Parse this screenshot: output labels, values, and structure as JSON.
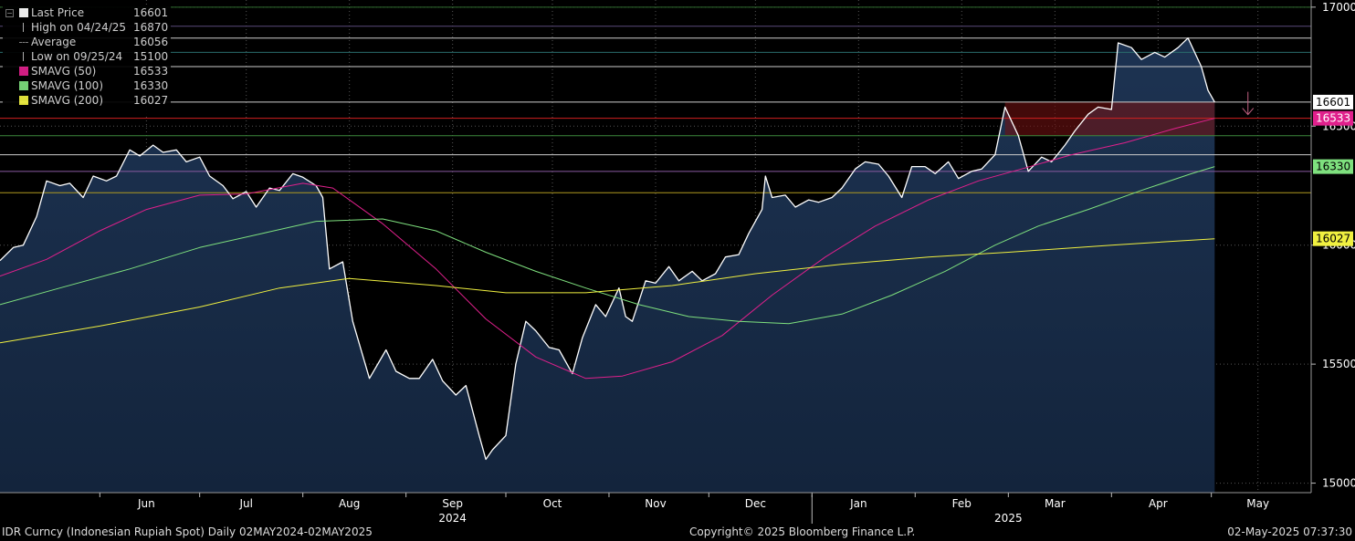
{
  "legend": {
    "items": [
      {
        "label": "Last Price",
        "value": "16601",
        "color": "#ffffff",
        "symbol": "box"
      },
      {
        "label": "High on 04/24/25",
        "value": "16870",
        "color": "#bbbbbb",
        "symbol": "high-marker"
      },
      {
        "label": "Average",
        "value": "16056",
        "color": "#888888",
        "symbol": "average-marker"
      },
      {
        "label": "Low on 09/25/24",
        "value": "15100",
        "color": "#bbbbbb",
        "symbol": "low-marker"
      },
      {
        "label": "SMAVG (50)",
        "value": "16533",
        "color": "#e0208c",
        "symbol": "box"
      },
      {
        "label": "SMAVG (100)",
        "value": "16330",
        "color": "#7ee07e",
        "symbol": "box"
      },
      {
        "label": "SMAVG (200)",
        "value": "16027",
        "color": "#f0f040",
        "symbol": "box"
      }
    ]
  },
  "footer": {
    "left": "IDR Curncy (Indonesian Rupiah Spot)  Daily 02MAY2024-02MAY2025",
    "center": "Copyright© 2025 Bloomberg Finance L.P.",
    "right": "02-May-2025 07:37:30"
  },
  "chart_data": {
    "type": "line",
    "title": "IDR Curncy (Indonesian Rupiah Spot)",
    "period": "Daily 02MAY2024-02MAY2025",
    "ylim": [
      14960,
      17030
    ],
    "y_ticks": [
      15000,
      15500,
      16000,
      16500,
      17000
    ],
    "x_ticks": [
      {
        "label": "Jun",
        "date": "2024-06-15"
      },
      {
        "label": "Jul",
        "date": "2024-07-15"
      },
      {
        "label": "Aug",
        "date": "2024-08-15"
      },
      {
        "label": "Sep",
        "date": "2024-09-15"
      },
      {
        "label": "Oct",
        "date": "2024-10-15"
      },
      {
        "label": "Nov",
        "date": "2024-11-15"
      },
      {
        "label": "Dec",
        "date": "2024-12-15"
      },
      {
        "label": "Jan",
        "date": "2025-01-15"
      },
      {
        "label": "Feb",
        "date": "2025-02-15"
      },
      {
        "label": "Mar",
        "date": "2025-03-15"
      },
      {
        "label": "Apr",
        "date": "2025-04-15"
      },
      {
        "label": "May",
        "date": "2025-05-15"
      }
    ],
    "year_labels": [
      {
        "label": "2024",
        "date": "2024-09-15"
      },
      {
        "label": "2025",
        "date": "2025-03-01"
      }
    ],
    "x_start": "2024-05-02",
    "x_end": "2025-05-31",
    "grid": true,
    "series": [
      {
        "name": "Last Price",
        "color": "#ffffff",
        "area": true,
        "last_value": 16601,
        "points": [
          [
            "2024-05-02",
            15935
          ],
          [
            "2024-05-06",
            15990
          ],
          [
            "2024-05-09",
            16000
          ],
          [
            "2024-05-13",
            16120
          ],
          [
            "2024-05-16",
            16270
          ],
          [
            "2024-05-20",
            16250
          ],
          [
            "2024-05-23",
            16260
          ],
          [
            "2024-05-27",
            16200
          ],
          [
            "2024-05-30",
            16290
          ],
          [
            "2024-06-03",
            16270
          ],
          [
            "2024-06-06",
            16290
          ],
          [
            "2024-06-10",
            16400
          ],
          [
            "2024-06-13",
            16375
          ],
          [
            "2024-06-17",
            16420
          ],
          [
            "2024-06-20",
            16390
          ],
          [
            "2024-06-24",
            16400
          ],
          [
            "2024-06-27",
            16350
          ],
          [
            "2024-07-01",
            16370
          ],
          [
            "2024-07-04",
            16290
          ],
          [
            "2024-07-08",
            16250
          ],
          [
            "2024-07-11",
            16195
          ],
          [
            "2024-07-15",
            16225
          ],
          [
            "2024-07-18",
            16160
          ],
          [
            "2024-07-22",
            16240
          ],
          [
            "2024-07-25",
            16230
          ],
          [
            "2024-07-29",
            16300
          ],
          [
            "2024-08-01",
            16285
          ],
          [
            "2024-08-05",
            16250
          ],
          [
            "2024-08-07",
            16200
          ],
          [
            "2024-08-09",
            15900
          ],
          [
            "2024-08-13",
            15930
          ],
          [
            "2024-08-16",
            15680
          ],
          [
            "2024-08-21",
            15440
          ],
          [
            "2024-08-26",
            15560
          ],
          [
            "2024-08-29",
            15470
          ],
          [
            "2024-09-02",
            15440
          ],
          [
            "2024-09-05",
            15440
          ],
          [
            "2024-09-09",
            15520
          ],
          [
            "2024-09-12",
            15430
          ],
          [
            "2024-09-16",
            15370
          ],
          [
            "2024-09-19",
            15410
          ],
          [
            "2024-09-23",
            15200
          ],
          [
            "2024-09-25",
            15100
          ],
          [
            "2024-09-27",
            15140
          ],
          [
            "2024-10-01",
            15200
          ],
          [
            "2024-10-04",
            15500
          ],
          [
            "2024-10-07",
            15680
          ],
          [
            "2024-10-10",
            15640
          ],
          [
            "2024-10-14",
            15570
          ],
          [
            "2024-10-17",
            15560
          ],
          [
            "2024-10-21",
            15460
          ],
          [
            "2024-10-24",
            15610
          ],
          [
            "2024-10-28",
            15750
          ],
          [
            "2024-10-31",
            15700
          ],
          [
            "2024-11-04",
            15820
          ],
          [
            "2024-11-06",
            15700
          ],
          [
            "2024-11-08",
            15680
          ],
          [
            "2024-11-12",
            15850
          ],
          [
            "2024-11-15",
            15840
          ],
          [
            "2024-11-19",
            15910
          ],
          [
            "2024-11-22",
            15850
          ],
          [
            "2024-11-26",
            15890
          ],
          [
            "2024-11-29",
            15850
          ],
          [
            "2024-12-03",
            15880
          ],
          [
            "2024-12-06",
            15950
          ],
          [
            "2024-12-10",
            15960
          ],
          [
            "2024-12-13",
            16050
          ],
          [
            "2024-12-17",
            16150
          ],
          [
            "2024-12-18",
            16290
          ],
          [
            "2024-12-20",
            16200
          ],
          [
            "2024-12-24",
            16210
          ],
          [
            "2024-12-27",
            16160
          ],
          [
            "2024-12-31",
            16190
          ],
          [
            "2025-01-03",
            16180
          ],
          [
            "2025-01-07",
            16200
          ],
          [
            "2025-01-10",
            16240
          ],
          [
            "2025-01-14",
            16320
          ],
          [
            "2025-01-17",
            16350
          ],
          [
            "2025-01-21",
            16340
          ],
          [
            "2025-01-24",
            16290
          ],
          [
            "2025-01-28",
            16200
          ],
          [
            "2025-01-31",
            16330
          ],
          [
            "2025-02-04",
            16330
          ],
          [
            "2025-02-07",
            16300
          ],
          [
            "2025-02-11",
            16350
          ],
          [
            "2025-02-14",
            16280
          ],
          [
            "2025-02-18",
            16310
          ],
          [
            "2025-02-21",
            16320
          ],
          [
            "2025-02-25",
            16380
          ],
          [
            "2025-02-28",
            16580
          ],
          [
            "2025-03-04",
            16460
          ],
          [
            "2025-03-07",
            16310
          ],
          [
            "2025-03-11",
            16370
          ],
          [
            "2025-03-14",
            16350
          ],
          [
            "2025-03-18",
            16420
          ],
          [
            "2025-03-21",
            16480
          ],
          [
            "2025-03-25",
            16550
          ],
          [
            "2025-03-28",
            16580
          ],
          [
            "2025-04-01",
            16570
          ],
          [
            "2025-04-03",
            16850
          ],
          [
            "2025-04-07",
            16830
          ],
          [
            "2025-04-10",
            16780
          ],
          [
            "2025-04-14",
            16810
          ],
          [
            "2025-04-17",
            16790
          ],
          [
            "2025-04-21",
            16830
          ],
          [
            "2025-04-24",
            16870
          ],
          [
            "2025-04-28",
            16750
          ],
          [
            "2025-04-30",
            16650
          ],
          [
            "2025-05-02",
            16601
          ]
        ]
      },
      {
        "name": "SMAVG (50)",
        "color": "#e0208c",
        "last_value": 16533,
        "points": [
          [
            "2024-05-02",
            15870
          ],
          [
            "2024-05-16",
            15940
          ],
          [
            "2024-06-01",
            16060
          ],
          [
            "2024-06-15",
            16150
          ],
          [
            "2024-07-01",
            16210
          ],
          [
            "2024-07-15",
            16215
          ],
          [
            "2024-08-01",
            16260
          ],
          [
            "2024-08-10",
            16240
          ],
          [
            "2024-08-25",
            16090
          ],
          [
            "2024-09-10",
            15900
          ],
          [
            "2024-09-25",
            15690
          ],
          [
            "2024-10-10",
            15530
          ],
          [
            "2024-10-25",
            15440
          ],
          [
            "2024-11-05",
            15450
          ],
          [
            "2024-11-20",
            15510
          ],
          [
            "2024-12-05",
            15620
          ],
          [
            "2024-12-20",
            15790
          ],
          [
            "2025-01-05",
            15950
          ],
          [
            "2025-01-20",
            16080
          ],
          [
            "2025-02-05",
            16190
          ],
          [
            "2025-02-20",
            16270
          ],
          [
            "2025-03-05",
            16320
          ],
          [
            "2025-03-20",
            16380
          ],
          [
            "2025-04-05",
            16430
          ],
          [
            "2025-04-20",
            16490
          ],
          [
            "2025-05-02",
            16533
          ]
        ]
      },
      {
        "name": "SMAVG (100)",
        "color": "#7ee07e",
        "last_value": 16330,
        "points": [
          [
            "2024-05-02",
            15750
          ],
          [
            "2024-05-20",
            15820
          ],
          [
            "2024-06-10",
            15900
          ],
          [
            "2024-07-01",
            15990
          ],
          [
            "2024-07-20",
            16050
          ],
          [
            "2024-08-05",
            16100
          ],
          [
            "2024-08-25",
            16110
          ],
          [
            "2024-09-10",
            16060
          ],
          [
            "2024-09-25",
            15970
          ],
          [
            "2024-10-10",
            15890
          ],
          [
            "2024-10-25",
            15820
          ],
          [
            "2024-11-10",
            15750
          ],
          [
            "2024-11-25",
            15700
          ],
          [
            "2024-12-10",
            15680
          ],
          [
            "2024-12-25",
            15670
          ],
          [
            "2025-01-10",
            15710
          ],
          [
            "2025-01-25",
            15790
          ],
          [
            "2025-02-10",
            15890
          ],
          [
            "2025-02-25",
            16000
          ],
          [
            "2025-03-10",
            16080
          ],
          [
            "2025-03-25",
            16150
          ],
          [
            "2025-04-10",
            16230
          ],
          [
            "2025-04-25",
            16300
          ],
          [
            "2025-05-02",
            16330
          ]
        ]
      },
      {
        "name": "SMAVG (200)",
        "color": "#f0f040",
        "last_value": 16027,
        "points": [
          [
            "2024-05-02",
            15590
          ],
          [
            "2024-06-01",
            15660
          ],
          [
            "2024-07-01",
            15740
          ],
          [
            "2024-07-25",
            15820
          ],
          [
            "2024-08-15",
            15860
          ],
          [
            "2024-09-10",
            15830
          ],
          [
            "2024-10-01",
            15800
          ],
          [
            "2024-10-25",
            15800
          ],
          [
            "2024-11-20",
            15830
          ],
          [
            "2024-12-15",
            15880
          ],
          [
            "2025-01-10",
            15920
          ],
          [
            "2025-02-05",
            15950
          ],
          [
            "2025-03-01",
            15970
          ],
          [
            "2025-04-01",
            16000
          ],
          [
            "2025-05-02",
            16027
          ]
        ]
      }
    ],
    "reference_lines": [
      {
        "value": 17000,
        "color": "#2f6d2f"
      },
      {
        "value": 16920,
        "color": "#5a4a7a"
      },
      {
        "value": 16870,
        "color": "#cccccc"
      },
      {
        "value": 16810,
        "color": "#2a6d6d"
      },
      {
        "value": 16750,
        "color": "#cccccc"
      },
      {
        "value": 16601,
        "color": "#cccccc"
      },
      {
        "value": 16533,
        "color": "#d02020"
      },
      {
        "value": 16460,
        "color": "#3d8a3d"
      },
      {
        "value": 16380,
        "color": "#cccccc"
      },
      {
        "value": 16310,
        "color": "#8a5aa0"
      },
      {
        "value": 16220,
        "color": "#b09a20"
      }
    ],
    "shaded_band": {
      "from": 16460,
      "to": 16601,
      "start": "2025-02-28",
      "end": "2025-05-02",
      "color": "#701010"
    },
    "annotation": {
      "type": "down-arrow",
      "date": "2025-05-12",
      "value": 16560,
      "color": "#c06080"
    },
    "price_badges": [
      {
        "value": 16601,
        "text": "16601",
        "bg": "#ffffff",
        "fg": "#000000"
      },
      {
        "value": 16533,
        "text": "16533",
        "bg": "#e0208c",
        "fg": "#ffffff"
      },
      {
        "value": 16330,
        "text": "16330",
        "bg": "#7ee07e",
        "fg": "#000000"
      },
      {
        "value": 16027,
        "text": "16027",
        "bg": "#f0f040",
        "fg": "#000000"
      }
    ]
  }
}
